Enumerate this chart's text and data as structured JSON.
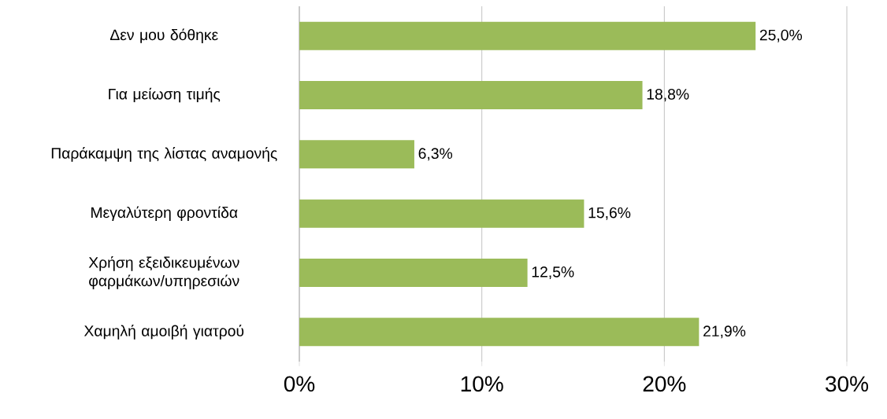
{
  "chart_data": {
    "type": "bar",
    "orientation": "horizontal",
    "categories": [
      "Δεν μου δόθηκε",
      "Για μείωση τιμής",
      "Παράκαμψη της λίστας αναμονής",
      "Μεγαλύτερη φροντίδα",
      "Χρήση εξειδικευμένων φαρμάκων/υπηρεσιών",
      "Χαμηλή αμοιβή γιατρού"
    ],
    "values": [
      25.0,
      18.8,
      6.3,
      15.6,
      12.5,
      21.9
    ],
    "value_labels": [
      "25,0%",
      "18,8%",
      "6,3%",
      "15,6%",
      "12,5%",
      "21,9%"
    ],
    "color": "#9bbb59",
    "xlim": [
      0,
      30
    ],
    "xticks": [
      {
        "value": 0,
        "label": "0%"
      },
      {
        "value": 10,
        "label": "10%"
      },
      {
        "value": 20,
        "label": "20%"
      },
      {
        "value": 30,
        "label": "30%"
      }
    ],
    "grid": "x"
  }
}
